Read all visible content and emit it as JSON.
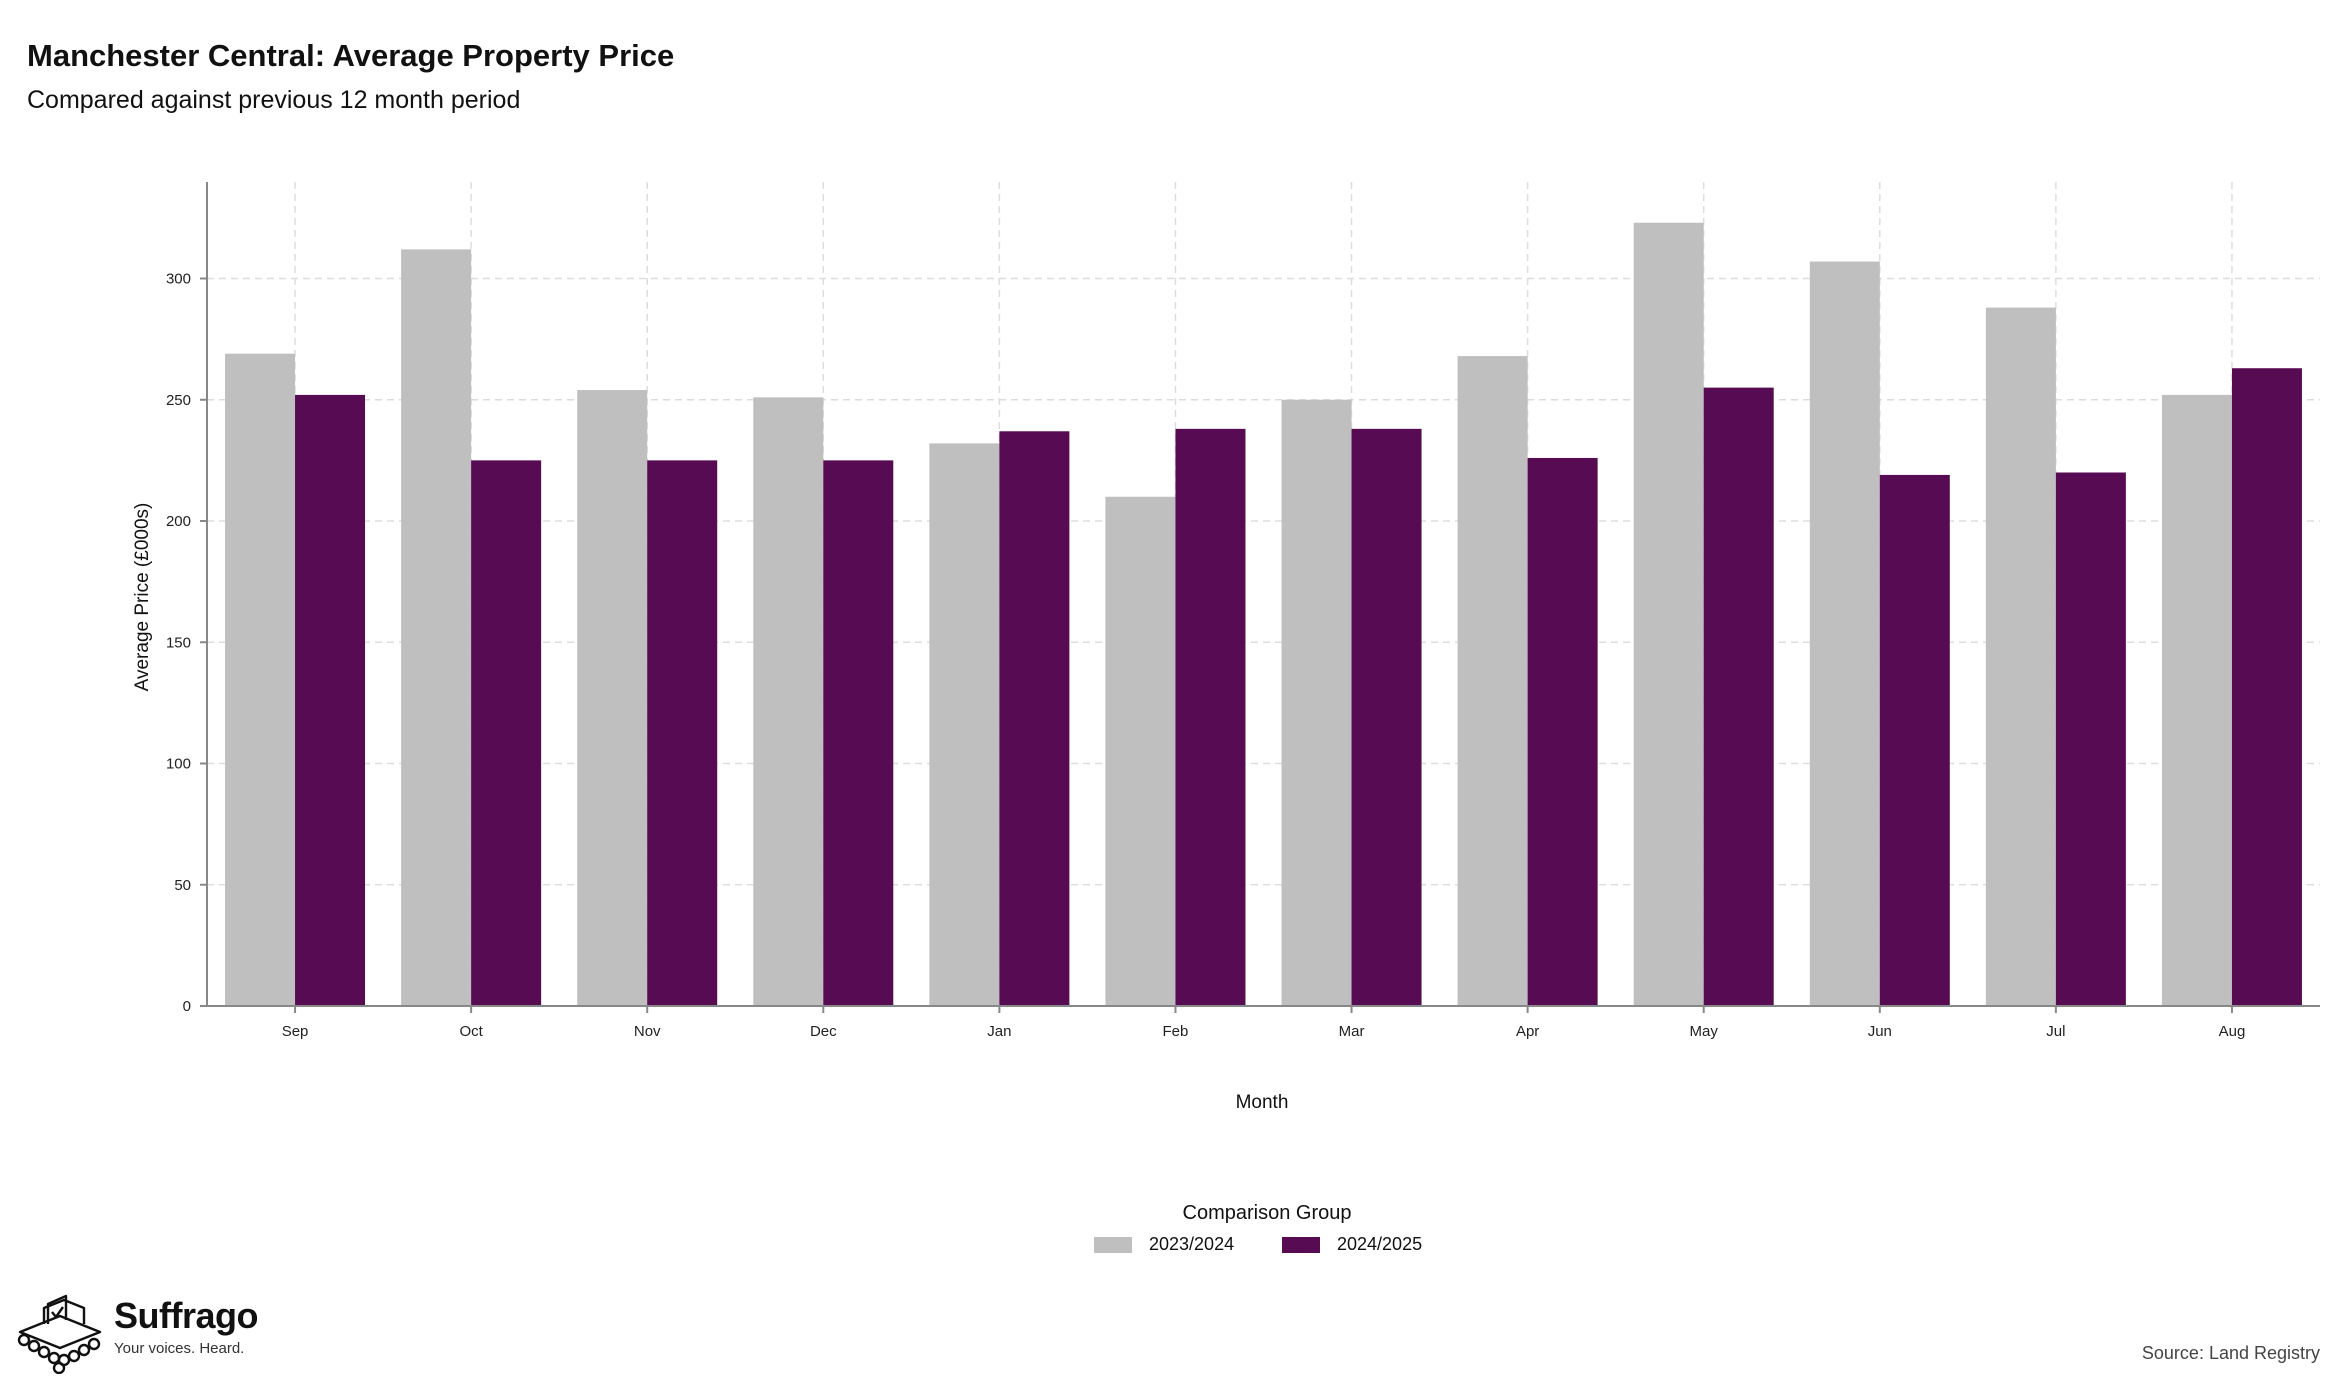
{
  "header": {
    "title": "Manchester Central: Average Property Price",
    "subtitle": "Compared against previous 12 month period"
  },
  "legend": {
    "title": "Comparison Group",
    "items": [
      {
        "label": "2023/2024",
        "color": "#bfbfbf"
      },
      {
        "label": "2024/2025",
        "color": "#560b52"
      }
    ]
  },
  "branding": {
    "name": "Suffrago",
    "tagline": "Your voices. Heard.",
    "icon": "ballot-box-icon"
  },
  "footer": {
    "source": "Source: Land Registry"
  },
  "chart_data": {
    "type": "bar",
    "title": "Manchester Central: Average Property Price",
    "subtitle": "Compared against previous 12 month period",
    "xlabel": "Month",
    "ylabel": "Average Price (£000s)",
    "ylim": [
      0,
      335
    ],
    "yticks": [
      0,
      50,
      100,
      150,
      200,
      250,
      300
    ],
    "grid": true,
    "legend_position": "bottom",
    "categories": [
      "Sep",
      "Oct",
      "Nov",
      "Dec",
      "Jan",
      "Feb",
      "Mar",
      "Apr",
      "May",
      "Jun",
      "Jul",
      "Aug"
    ],
    "series": [
      {
        "name": "2023/2024",
        "color": "#bfbfbf",
        "values": [
          269,
          312,
          254,
          251,
          232,
          210,
          250,
          268,
          323,
          307,
          288,
          252
        ]
      },
      {
        "name": "2024/2025",
        "color": "#560b52",
        "values": [
          252,
          225,
          225,
          225,
          237,
          238,
          238,
          226,
          255,
          219,
          220,
          263
        ]
      }
    ]
  }
}
